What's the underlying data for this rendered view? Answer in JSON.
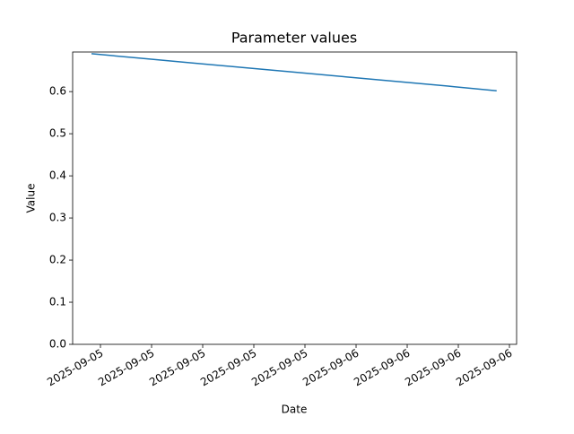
{
  "chart_data": {
    "type": "line",
    "title": "Parameter values",
    "x_label": "Date",
    "y_label": "Value",
    "x": [
      -0.175,
      0.8,
      1.8,
      2.8,
      3.8,
      4.8,
      5.8,
      6.8,
      7.75
    ],
    "series": [
      {
        "name": "Value",
        "color": "#1f77b4",
        "values": [
          0.69,
          0.679,
          0.668,
          0.657,
          0.646,
          0.635,
          0.624,
          0.613,
          0.602
        ]
      }
    ],
    "xlim": [
      -0.544,
      8.14
    ],
    "xticks": [
      {
        "value": 0,
        "label": "2025-09-05"
      },
      {
        "value": 1,
        "label": "2025-09-05"
      },
      {
        "value": 2,
        "label": "2025-09-05"
      },
      {
        "value": 3,
        "label": "2025-09-05"
      },
      {
        "value": 4,
        "label": "2025-09-05"
      },
      {
        "value": 5,
        "label": "2025-09-06"
      },
      {
        "value": 6,
        "label": "2025-09-06"
      },
      {
        "value": 7,
        "label": "2025-09-06"
      },
      {
        "value": 8,
        "label": "2025-09-06"
      }
    ],
    "ylim": [
      0,
      0.694
    ],
    "yticks": [
      {
        "value": 0,
        "label": "0.0"
      },
      0.1,
      0.2,
      0.3,
      0.4,
      0.5,
      0.6
    ],
    "grid": false
  }
}
